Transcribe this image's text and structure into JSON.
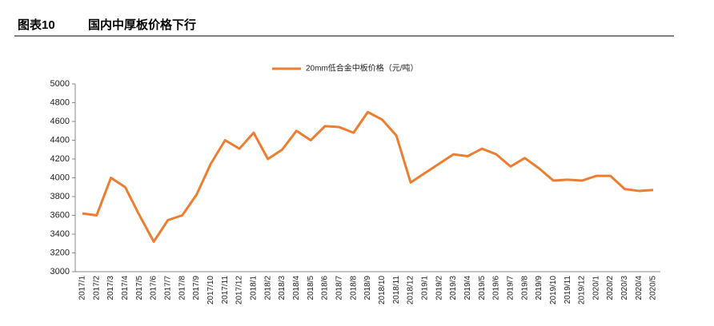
{
  "header": {
    "label": "图表10",
    "title": "国内中厚板价格下行"
  },
  "chart_data": {
    "type": "line",
    "categories": [
      "2017/1",
      "2017/2",
      "2017/3",
      "2017/4",
      "2017/5",
      "2017/6",
      "2017/7",
      "2017/8",
      "2017/9",
      "2017/10",
      "2017/11",
      "2017/12",
      "2018/1",
      "2018/2",
      "2018/3",
      "2018/4",
      "2018/5",
      "2018/6",
      "2018/7",
      "2018/8",
      "2018/9",
      "2018/10",
      "2018/11",
      "2018/12",
      "2019/1",
      "2019/2",
      "2019/3",
      "2019/4",
      "2019/5",
      "2019/6",
      "2019/7",
      "2019/8",
      "2019/9",
      "2019/10",
      "2019/11",
      "2019/12",
      "2020/1",
      "2020/2",
      "2020/3",
      "2020/4",
      "2020/5"
    ],
    "series": [
      {
        "name": "20mm低合金中板价格（元/吨）",
        "color": "#ed7d31",
        "values": [
          3620,
          3600,
          4000,
          3900,
          3600,
          3320,
          3550,
          3600,
          3820,
          4150,
          4400,
          4310,
          4480,
          4200,
          4300,
          4500,
          4400,
          4550,
          4540,
          4480,
          4700,
          4620,
          4450,
          3950,
          4050,
          4150,
          4250,
          4230,
          4310,
          4250,
          4120,
          4210,
          4100,
          3970,
          3980,
          3970,
          4020,
          4020,
          3880,
          3860,
          3870
        ]
      }
    ],
    "ylim": [
      3000,
      5000
    ],
    "yticks": [
      3000,
      3200,
      3400,
      3600,
      3800,
      4000,
      4200,
      4400,
      4600,
      4800,
      5000
    ],
    "legend": "top"
  }
}
